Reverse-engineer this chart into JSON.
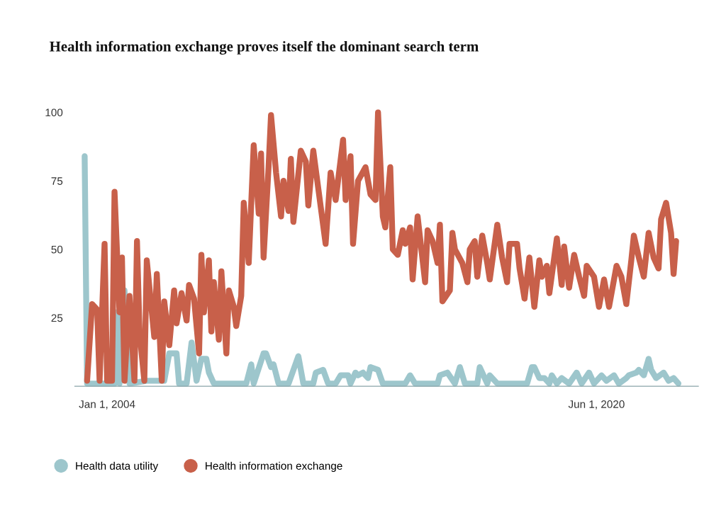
{
  "chart_data": {
    "type": "line",
    "title": "Health information exchange proves itself the dominant search term",
    "xlim": [
      "2002-12",
      "2023-11"
    ],
    "xticks": [
      {
        "value": "2004-01-01",
        "label": "Jan 1, 2004"
      },
      {
        "value": "2020-06-01",
        "label": "Jun 1, 2020"
      }
    ],
    "ylim": [
      0,
      100
    ],
    "yticks": [
      25,
      50,
      75,
      100
    ],
    "grid": false,
    "legend": "bottom",
    "marker": "none",
    "line_style": "solid",
    "series": [
      {
        "name": "Health data utility",
        "color": "#9dc6cc",
        "x": [
          "2003-04",
          "2003-05",
          "2004-04",
          "2004-05",
          "2004-06",
          "2004-08",
          "2004-10",
          "2005-05",
          "2005-12",
          "2006-02",
          "2006-05",
          "2006-06",
          "2006-09",
          "2006-11",
          "2007-01",
          "2007-03",
          "2007-05",
          "2007-06",
          "2007-08",
          "2008-09",
          "2008-11",
          "2008-12",
          "2009-04",
          "2009-05",
          "2009-07",
          "2009-08",
          "2009-10",
          "2010-02",
          "2010-06",
          "2010-08",
          "2010-12",
          "2011-01",
          "2011-04",
          "2011-06",
          "2011-09",
          "2011-11",
          "2012-02",
          "2012-03",
          "2012-05",
          "2012-06",
          "2012-08",
          "2012-10",
          "2012-11",
          "2013-02",
          "2013-04",
          "2014-01",
          "2014-03",
          "2014-05",
          "2015-02",
          "2015-03",
          "2015-06",
          "2015-09",
          "2015-11",
          "2016-01",
          "2016-06",
          "2016-07",
          "2016-10",
          "2016-11",
          "2017-02",
          "2018-02",
          "2018-04",
          "2018-05",
          "2018-07",
          "2018-09",
          "2018-11",
          "2018-12",
          "2019-02",
          "2019-04",
          "2019-07",
          "2019-10",
          "2019-12",
          "2020-03",
          "2020-05",
          "2020-08",
          "2020-10",
          "2021-01",
          "2021-03",
          "2021-06",
          "2021-07",
          "2021-10",
          "2021-11",
          "2022-01",
          "2022-03",
          "2022-04",
          "2022-06",
          "2022-09",
          "2022-11",
          "2023-01",
          "2023-03"
        ],
        "values": [
          84,
          1,
          1,
          27,
          1,
          35,
          1,
          2,
          2,
          12,
          12,
          1,
          1,
          16,
          2,
          10,
          10,
          5,
          1,
          1,
          8,
          1,
          12,
          12,
          7,
          8,
          1,
          1,
          11,
          1,
          1,
          5,
          6,
          1,
          1,
          4,
          4,
          1,
          5,
          4,
          5,
          3,
          7,
          6,
          1,
          1,
          4,
          1,
          1,
          4,
          5,
          1,
          7,
          1,
          1,
          7,
          1,
          4,
          1,
          1,
          7,
          7,
          3,
          3,
          1,
          4,
          1,
          3,
          1,
          5,
          1,
          5,
          1,
          4,
          2,
          4,
          1,
          3,
          4,
          5,
          6,
          4,
          10,
          6,
          3,
          5,
          2,
          3,
          1
        ]
      },
      {
        "name": "Health information exchange",
        "color": "#c8604a",
        "x": [
          "2003-05",
          "2003-07",
          "2003-09",
          "2003-10",
          "2003-12",
          "2004-01",
          "2004-03",
          "2004-04",
          "2004-06",
          "2004-07",
          "2004-08",
          "2004-10",
          "2004-12",
          "2005-01",
          "2005-02",
          "2005-04",
          "2005-05",
          "2005-08",
          "2005-09",
          "2005-11",
          "2005-12",
          "2006-02",
          "2006-04",
          "2006-05",
          "2006-07",
          "2006-09",
          "2006-10",
          "2006-12",
          "2007-02",
          "2007-03",
          "2007-04",
          "2007-06",
          "2007-07",
          "2007-08",
          "2007-10",
          "2007-11",
          "2008-01",
          "2008-02",
          "2008-04",
          "2008-05",
          "2008-07",
          "2008-08",
          "2008-10",
          "2008-11",
          "2008-12",
          "2009-02",
          "2009-03",
          "2009-04",
          "2009-06",
          "2009-07",
          "2009-09",
          "2009-11",
          "2009-12",
          "2010-02",
          "2010-03",
          "2010-04",
          "2010-07",
          "2010-09",
          "2010-10",
          "2010-12",
          "2011-02",
          "2011-05",
          "2011-07",
          "2011-09",
          "2011-12",
          "2012-01",
          "2012-03",
          "2012-04",
          "2012-06",
          "2012-09",
          "2012-11",
          "2013-01",
          "2013-02",
          "2013-04",
          "2013-05",
          "2013-07",
          "2013-08",
          "2013-10",
          "2013-12",
          "2014-01",
          "2014-03",
          "2014-04",
          "2014-06",
          "2014-09",
          "2014-10",
          "2014-12",
          "2015-02",
          "2015-03",
          "2015-04",
          "2015-07",
          "2015-08",
          "2015-09",
          "2015-12",
          "2016-02",
          "2016-03",
          "2016-05",
          "2016-06",
          "2016-08",
          "2016-10",
          "2016-11",
          "2017-02",
          "2017-04",
          "2017-06",
          "2017-07",
          "2017-10",
          "2017-11",
          "2018-01",
          "2018-03",
          "2018-05",
          "2018-07",
          "2018-08",
          "2018-10",
          "2018-11",
          "2019-02",
          "2019-04",
          "2019-05",
          "2019-07",
          "2019-09",
          "2019-11",
          "2020-01",
          "2020-02",
          "2020-05",
          "2020-07",
          "2020-09",
          "2020-11",
          "2021-02",
          "2021-04",
          "2021-06",
          "2021-08",
          "2021-09",
          "2021-11",
          "2022-01",
          "2022-03",
          "2022-05",
          "2022-07",
          "2022-08",
          "2022-10",
          "2022-12",
          "2023-01",
          "2023-02"
        ],
        "values": [
          2,
          30,
          28,
          2,
          52,
          2,
          2,
          71,
          27,
          47,
          2,
          33,
          2,
          53,
          20,
          2,
          46,
          18,
          41,
          2,
          31,
          15,
          35,
          23,
          34,
          24,
          37,
          32,
          12,
          48,
          27,
          46,
          20,
          38,
          17,
          42,
          12,
          35,
          29,
          22,
          33,
          67,
          45,
          67,
          88,
          63,
          85,
          47,
          80,
          99,
          78,
          62,
          75,
          64,
          83,
          60,
          86,
          82,
          66,
          86,
          72,
          52,
          78,
          68,
          90,
          68,
          84,
          52,
          75,
          80,
          70,
          68,
          100,
          62,
          58,
          80,
          50,
          48,
          57,
          52,
          58,
          39,
          62,
          38,
          57,
          53,
          45,
          59,
          31,
          35,
          56,
          50,
          45,
          38,
          50,
          53,
          40,
          55,
          45,
          39,
          59,
          47,
          38,
          52,
          52,
          43,
          32,
          47,
          29,
          46,
          40,
          44,
          34,
          54,
          37,
          51,
          36,
          48,
          40,
          33,
          44,
          40,
          29,
          39,
          29,
          44,
          40,
          30,
          46,
          55,
          47,
          40,
          56,
          47,
          43,
          61,
          67,
          56,
          41,
          53
        ]
      }
    ]
  }
}
